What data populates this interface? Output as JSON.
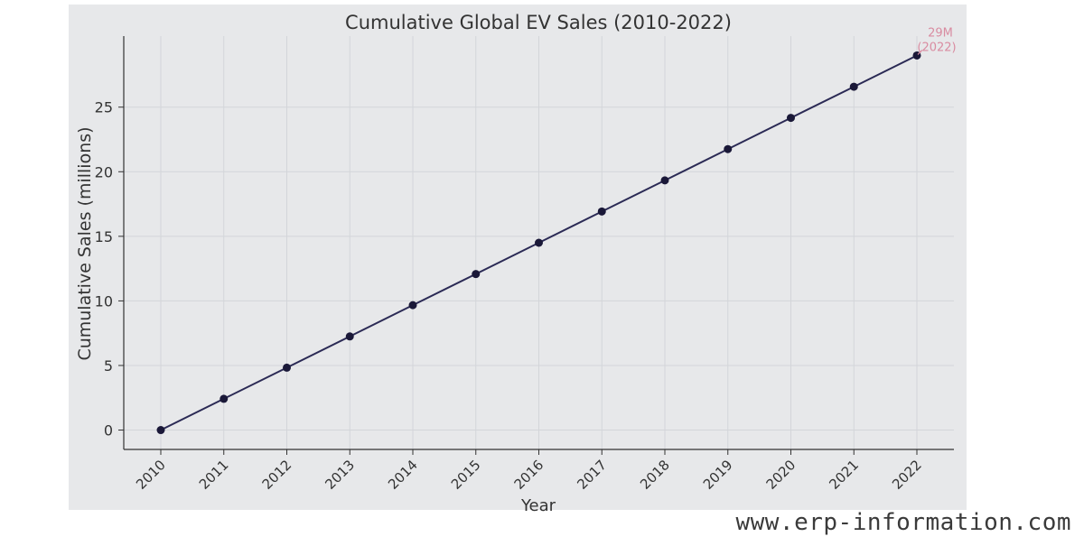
{
  "chart_data": {
    "type": "line",
    "title": "Cumulative Global EV Sales (2010-2022)",
    "xlabel": "Year",
    "ylabel": "Cumulative Sales (millions)",
    "x": [
      2010,
      2011,
      2012,
      2013,
      2014,
      2015,
      2016,
      2017,
      2018,
      2019,
      2020,
      2021,
      2022
    ],
    "series": [
      {
        "values": [
          0,
          2.42,
          4.83,
          7.25,
          9.67,
          12.08,
          14.5,
          16.92,
          19.33,
          21.75,
          24.17,
          26.58,
          29.0
        ]
      }
    ],
    "ylim": [
      -1.5,
      30.5
    ],
    "yticks": [
      0,
      5,
      10,
      15,
      20,
      25
    ],
    "grid": true,
    "line_color": "#2b2a55",
    "marker_color": "#1a1838",
    "annotation": {
      "text_line1": "29M",
      "text_line2": "(2022)",
      "x": 2022,
      "y": 29.0,
      "color": "#d98ca1"
    }
  },
  "watermark": "www.erp-information.com"
}
